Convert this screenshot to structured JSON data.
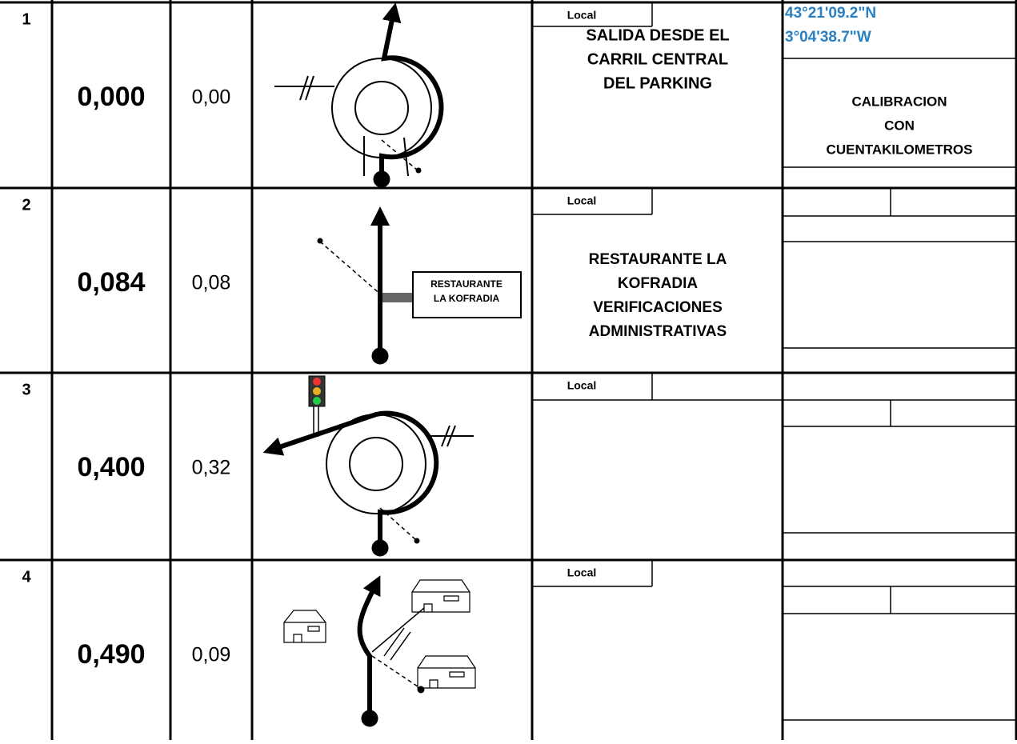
{
  "rows": [
    {
      "number": "1",
      "total": "0,000",
      "partial": "0,00",
      "road": "Local",
      "description": [
        "SALIDA DESDE EL",
        "CARRIL CENTRAL",
        "DEL PARKING"
      ],
      "coordinates": [
        "43°21'09.2\"N",
        "3°04'38.7\"W"
      ],
      "note": [
        "CALIBRACION",
        "CON",
        "CUENTAKILOMETROS"
      ]
    },
    {
      "number": "2",
      "total": "0,084",
      "partial": "0,08",
      "road": "Local",
      "description": [
        "RESTAURANTE LA",
        "KOFRADIA",
        "VERIFICACIONES",
        "ADMINISTRATIVAS"
      ],
      "sign": [
        "RESTAURANTE",
        "LA KOFRADIA"
      ]
    },
    {
      "number": "3",
      "total": "0,400",
      "partial": "0,32",
      "road": "Local"
    },
    {
      "number": "4",
      "total": "0,490",
      "partial": "0,09",
      "road": "Local"
    }
  ]
}
